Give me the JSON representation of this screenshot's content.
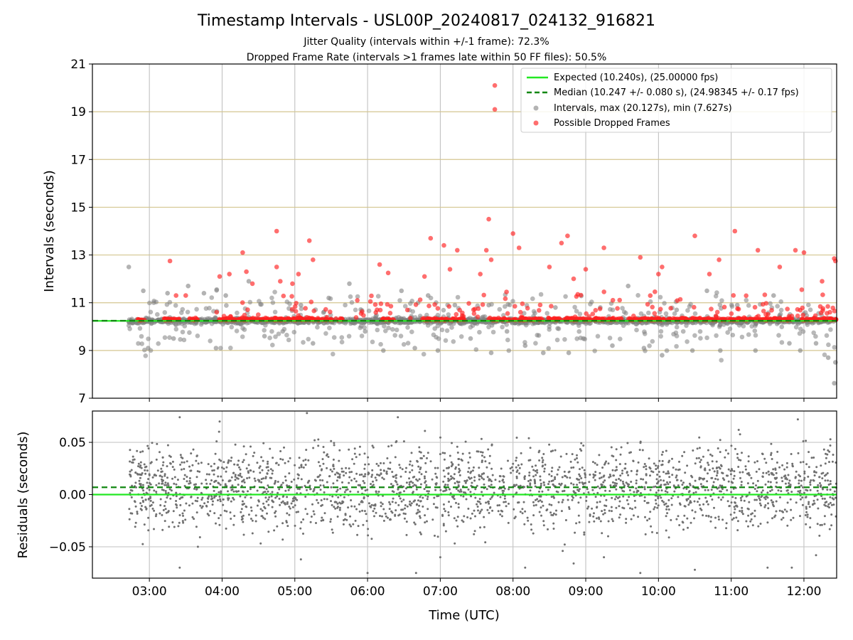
{
  "chart_data": {
    "type": "scatter",
    "title": "Timestamp Intervals - USL00P_20240817_024132_916821",
    "subtitle_1": "Jitter Quality (intervals within +/-1 frame): 72.3%",
    "subtitle_2": "Dropped Frame Rate (intervals >1 frames late within 50 FF files): 50.5%",
    "xlabel": "Time (UTC)",
    "x_ticks": [
      "03:00",
      "04:00",
      "05:00",
      "06:00",
      "07:00",
      "08:00",
      "09:00",
      "10:00",
      "11:00",
      "12:00"
    ],
    "xlim": [
      "02:13",
      "12:27"
    ],
    "panels": [
      {
        "ylabel": "Intervals (seconds)",
        "ylim": [
          7,
          21
        ],
        "y_ticks": [
          "7",
          "9",
          "11",
          "13",
          "15",
          "17",
          "19",
          "21"
        ],
        "grid": true,
        "legend_position": "top-right",
        "series": [
          {
            "name": "Expected (10.240s), (25.00000 fps)",
            "kind": "line",
            "value": 10.24,
            "color": "#22e822"
          },
          {
            "name": "Median (10.247 +/- 0.080 s), (24.98345 +/- 0.17 fps)",
            "kind": "dashed-line",
            "value": 10.247,
            "color": "#118811"
          },
          {
            "name": "Intervals, max (20.127s), min (7.627s)",
            "kind": "points",
            "color": "#808080",
            "sample_points": [
              [
                "02:43",
                12.5
              ],
              [
                "02:55",
                11.5
              ],
              [
                "02:59",
                9.1
              ],
              [
                "03:15",
                11.4
              ],
              [
                "03:20",
                9.5
              ],
              [
                "03:32",
                11.7
              ],
              [
                "03:45",
                11.4
              ],
              [
                "03:55",
                9.1
              ],
              [
                "04:03",
                11.3
              ],
              [
                "04:22",
                11.9
              ],
              [
                "04:35",
                9.6
              ],
              [
                "04:50",
                9.8
              ],
              [
                "05:05",
                10.9
              ],
              [
                "05:15",
                9.3
              ],
              [
                "05:28",
                11.2
              ],
              [
                "05:45",
                11.8
              ],
              [
                "05:58",
                9.8
              ],
              [
                "06:13",
                9.0
              ],
              [
                "06:28",
                11.5
              ],
              [
                "06:39",
                9.1
              ],
              [
                "06:50",
                11.3
              ],
              [
                "06:58",
                9.0
              ],
              [
                "07:12",
                10.9
              ],
              [
                "07:25",
                9.5
              ],
              [
                "07:40",
                10.9
              ],
              [
                "07:42",
                8.9
              ],
              [
                "07:55",
                9.8
              ],
              [
                "08:10",
                9.2
              ],
              [
                "08:25",
                8.9
              ],
              [
                "08:35",
                10.8
              ],
              [
                "08:46",
                8.9
              ],
              [
                "08:58",
                9.5
              ],
              [
                "09:12",
                10.8
              ],
              [
                "09:22",
                9.2
              ],
              [
                "09:35",
                11.7
              ],
              [
                "09:48",
                9.1
              ],
              [
                "10:03",
                8.8
              ],
              [
                "10:15",
                10.7
              ],
              [
                "10:28",
                9.0
              ],
              [
                "10:40",
                11.5
              ],
              [
                "10:51",
                9.0
              ],
              [
                "11:05",
                10.9
              ],
              [
                "11:20",
                9.0
              ],
              [
                "11:35",
                11.3
              ],
              [
                "11:48",
                9.3
              ],
              [
                "11:57",
                9.0
              ],
              [
                "12:10",
                9.3
              ],
              [
                "12:20",
                8.7
              ],
              [
                "12:25",
                7.63
              ],
              [
                "12:26",
                8.5
              ]
            ]
          },
          {
            "name": "Possible Dropped Frames",
            "kind": "points",
            "color": "#ff2020",
            "sample_points": [
              [
                "03:17",
                12.75
              ],
              [
                "03:22",
                11.3
              ],
              [
                "03:30",
                11.3
              ],
              [
                "03:58",
                12.1
              ],
              [
                "04:06",
                12.2
              ],
              [
                "04:17",
                13.1
              ],
              [
                "04:20",
                12.3
              ],
              [
                "04:25",
                11.8
              ],
              [
                "04:45",
                14.0
              ],
              [
                "04:48",
                11.9
              ],
              [
                "04:45",
                12.5
              ],
              [
                "04:58",
                11.8
              ],
              [
                "05:03",
                12.2
              ],
              [
                "05:12",
                13.6
              ],
              [
                "05:15",
                12.8
              ],
              [
                "06:10",
                12.6
              ],
              [
                "06:17",
                12.25
              ],
              [
                "06:47",
                12.1
              ],
              [
                "06:52",
                13.7
              ],
              [
                "07:03",
                13.4
              ],
              [
                "07:08",
                12.4
              ],
              [
                "07:14",
                13.2
              ],
              [
                "07:33",
                12.2
              ],
              [
                "07:38",
                13.2
              ],
              [
                "07:40",
                14.5
              ],
              [
                "07:42",
                12.8
              ],
              [
                "07:45",
                20.1
              ],
              [
                "07:45",
                19.1
              ],
              [
                "08:00",
                13.9
              ],
              [
                "08:05",
                13.3
              ],
              [
                "08:30",
                12.5
              ],
              [
                "08:40",
                13.5
              ],
              [
                "08:45",
                13.8
              ],
              [
                "08:50",
                12.0
              ],
              [
                "09:00",
                12.4
              ],
              [
                "09:15",
                13.3
              ],
              [
                "09:45",
                12.9
              ],
              [
                "10:00",
                12.2
              ],
              [
                "10:03",
                12.5
              ],
              [
                "10:30",
                13.8
              ],
              [
                "10:42",
                12.2
              ],
              [
                "10:50",
                12.8
              ],
              [
                "11:03",
                14.0
              ],
              [
                "11:22",
                13.2
              ],
              [
                "11:40",
                12.5
              ],
              [
                "11:53",
                13.2
              ],
              [
                "12:00",
                13.1
              ],
              [
                "12:15",
                11.9
              ],
              [
                "12:25",
                12.85
              ],
              [
                "12:26",
                12.75
              ]
            ]
          }
        ]
      },
      {
        "ylabel": "Residuals (seconds)",
        "ylim": [
          -0.08,
          0.08
        ],
        "y_ticks": [
          "−0.05",
          "0.00",
          "0.05"
        ],
        "grid": true,
        "series": [
          {
            "name": "Expected",
            "kind": "line",
            "value": 0.0,
            "color": "#22e822"
          },
          {
            "name": "Median",
            "kind": "dashed-line",
            "value": 0.007,
            "color": "#118811"
          },
          {
            "name": "Residuals",
            "kind": "points",
            "color": "#707070",
            "sample_points": [
              [
                "03:25",
                0.074
              ],
              [
                "03:25",
                -0.07
              ],
              [
                "03:58",
                0.07
              ],
              [
                "05:10",
                0.078
              ],
              [
                "05:05",
                -0.062
              ],
              [
                "06:40",
                -0.075
              ],
              [
                "06:25",
                0.074
              ],
              [
                "07:00",
                -0.06
              ],
              [
                "08:10",
                -0.07
              ],
              [
                "08:50",
                -0.066
              ],
              [
                "09:15",
                -0.06
              ],
              [
                "09:45",
                -0.075
              ],
              [
                "10:30",
                -0.072
              ],
              [
                "11:30",
                -0.07
              ],
              [
                "11:50",
                -0.07
              ],
              [
                "11:55",
                0.072
              ],
              [
                "03:40",
                -0.05
              ],
              [
                "04:50",
                -0.043
              ],
              [
                "06:00",
                -0.075
              ],
              [
                "12:10",
                -0.058
              ]
            ]
          }
        ]
      }
    ]
  }
}
